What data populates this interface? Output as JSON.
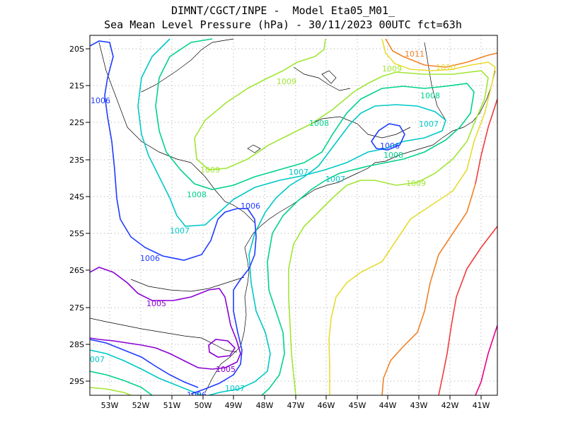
{
  "header": {
    "line1": "DIMNT/CGCT/INPE -  Model Eta05_M01_",
    "line2": "Sea Mean Level Pressure (hPa) - 30/11/2023 00UTC fct=63h"
  },
  "axes": {
    "lat_labels": [
      "20S",
      "21S",
      "22S",
      "23S",
      "24S",
      "25S",
      "26S",
      "27S",
      "28S",
      "29S"
    ],
    "lon_labels": [
      "53W",
      "52W",
      "51W",
      "50W",
      "49W",
      "48W",
      "47W",
      "46W",
      "45W",
      "44W",
      "43W",
      "42W",
      "41W"
    ]
  },
  "contours": {
    "colors": {
      "1005": "#8a00d4",
      "1006": "#1e3cff",
      "1007": "#00c8c8",
      "1008": "#00d28c",
      "1009": "#a0e632",
      "1010": "#e6dc32",
      "1011": "#f08228",
      "1012": "#f03c3c",
      "1013": "#e6008c"
    },
    "labels": [
      {
        "id": "l1006a",
        "text": "1006",
        "level": "1006"
      },
      {
        "id": "l1006b",
        "text": "1006",
        "level": "1006"
      },
      {
        "id": "l1006c",
        "text": "1006",
        "level": "1006"
      },
      {
        "id": "l1006d",
        "text": "1006",
        "level": "1006"
      },
      {
        "id": "l1006e",
        "text": "1006",
        "level": "1006"
      },
      {
        "id": "l1005a",
        "text": "1005",
        "level": "1005"
      },
      {
        "id": "l1005b",
        "text": "1005",
        "level": "1005"
      },
      {
        "id": "l1007a",
        "text": "1007",
        "level": "1007"
      },
      {
        "id": "l1007b",
        "text": "1007",
        "level": "1007"
      },
      {
        "id": "l1007c",
        "text": "1007",
        "level": "1007"
      },
      {
        "id": "l1007d",
        "text": "1007",
        "level": "1007"
      },
      {
        "id": "l1007e",
        "text": "1007",
        "level": "1007"
      },
      {
        "id": "l1007f",
        "text": "007",
        "level": "1007"
      },
      {
        "id": "l1008a",
        "text": "1008",
        "level": "1008"
      },
      {
        "id": "l1008b",
        "text": "1008",
        "level": "1008"
      },
      {
        "id": "l1008c",
        "text": "1008",
        "level": "1008"
      },
      {
        "id": "l1008d",
        "text": "1008",
        "level": "1008"
      },
      {
        "id": "l1009a",
        "text": "1009",
        "level": "1009"
      },
      {
        "id": "l1009b",
        "text": "1009",
        "level": "1009"
      },
      {
        "id": "l1009c",
        "text": "1009",
        "level": "1009"
      },
      {
        "id": "l1009d",
        "text": "1009",
        "level": "1009"
      },
      {
        "id": "l1010a",
        "text": "1010",
        "level": "1010"
      },
      {
        "id": "l1011a",
        "text": "1011",
        "level": "1011"
      }
    ]
  }
}
